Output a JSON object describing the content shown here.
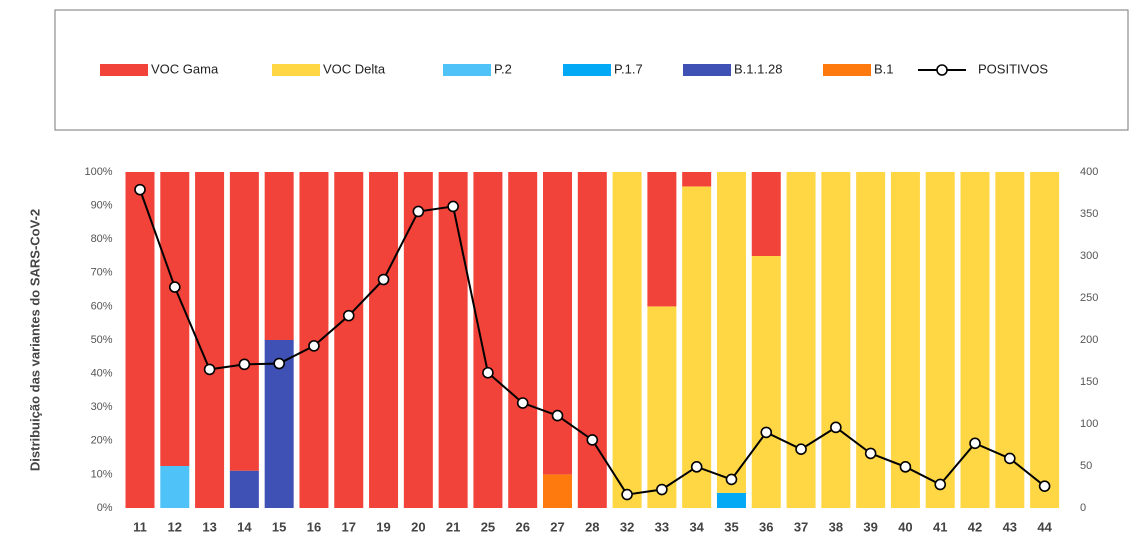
{
  "chart_data": {
    "type": "bar",
    "stacked": true,
    "y_label": "Distribuição das variantes do SARS-CoV-2",
    "categories": [
      "11",
      "12",
      "13",
      "14",
      "15",
      "16",
      "17",
      "19",
      "20",
      "21",
      "25",
      "26",
      "27",
      "28",
      "32",
      "33",
      "34",
      "35",
      "36",
      "37",
      "38",
      "39",
      "40",
      "41",
      "42",
      "43",
      "44"
    ],
    "series": [
      {
        "name": "VOC Gama",
        "color": "#f2433a",
        "values": [
          100,
          87.5,
          100,
          88.9,
          50,
          100,
          100,
          100,
          100,
          100,
          100,
          100,
          90,
          100,
          0,
          40,
          4.3,
          0,
          25,
          0,
          0,
          0,
          0,
          0,
          0,
          0,
          0
        ]
      },
      {
        "name": "VOC Delta",
        "color": "#ffd745",
        "values": [
          0,
          0,
          0,
          0,
          0,
          0,
          0,
          0,
          0,
          0,
          0,
          0,
          0,
          0,
          100,
          60,
          95.7,
          95.5,
          75,
          100,
          100,
          100,
          100,
          100,
          100,
          100,
          100
        ]
      },
      {
        "name": "P.2",
        "color": "#4fc3f7",
        "values": [
          0,
          12.5,
          0,
          0,
          0,
          0,
          0,
          0,
          0,
          0,
          0,
          0,
          0,
          0,
          0,
          0,
          0,
          0,
          0,
          0,
          0,
          0,
          0,
          0,
          0,
          0,
          0
        ]
      },
      {
        "name": "P.1.7",
        "color": "#03a9f4",
        "values": [
          0,
          0,
          0,
          0,
          0,
          0,
          0,
          0,
          0,
          0,
          0,
          0,
          0,
          0,
          0,
          0,
          0,
          4.5,
          0,
          0,
          0,
          0,
          0,
          0,
          0,
          0,
          0
        ]
      },
      {
        "name": "B.1.1.28",
        "color": "#3f51b5",
        "values": [
          0,
          0,
          0,
          11.1,
          50,
          0,
          0,
          0,
          0,
          0,
          0,
          0,
          0,
          0,
          0,
          0,
          0,
          0,
          0,
          0,
          0,
          0,
          0,
          0,
          0,
          0,
          0
        ]
      },
      {
        "name": "B.1",
        "color": "#ff7a0e",
        "values": [
          0,
          0,
          0,
          0,
          0,
          0,
          0,
          0,
          0,
          0,
          0,
          0,
          10,
          0,
          0,
          0,
          0,
          0,
          0,
          0,
          0,
          0,
          0,
          0,
          0,
          0,
          0
        ]
      },
      {
        "name": "POSITIVOS",
        "type": "line",
        "axis": "y2",
        "color": "#000000",
        "values": [
          379,
          263,
          165,
          171,
          172,
          193,
          229,
          272,
          353,
          359,
          161,
          125,
          110,
          81,
          16,
          22,
          49,
          34,
          90,
          70,
          96,
          65,
          49,
          28,
          77,
          59,
          26
        ]
      }
    ],
    "ylim": [
      0,
      100
    ],
    "yticks": [
      {
        "value": 0,
        "label": "0%"
      },
      {
        "value": 10,
        "label": "10%"
      },
      {
        "value": 20,
        "label": "20%"
      },
      {
        "value": 30,
        "label": "30%"
      },
      {
        "value": 40,
        "label": "40%"
      },
      {
        "value": 50,
        "label": "50%"
      },
      {
        "value": 60,
        "label": "60%"
      },
      {
        "value": 70,
        "label": "70%"
      },
      {
        "value": 80,
        "label": "80%"
      },
      {
        "value": 90,
        "label": "90%"
      },
      {
        "value": 100,
        "label": "100%"
      }
    ],
    "y2lim": [
      0,
      400
    ],
    "y2ticks": [
      0,
      50,
      100,
      150,
      200,
      250,
      300,
      350,
      400
    ],
    "legend": "top"
  }
}
